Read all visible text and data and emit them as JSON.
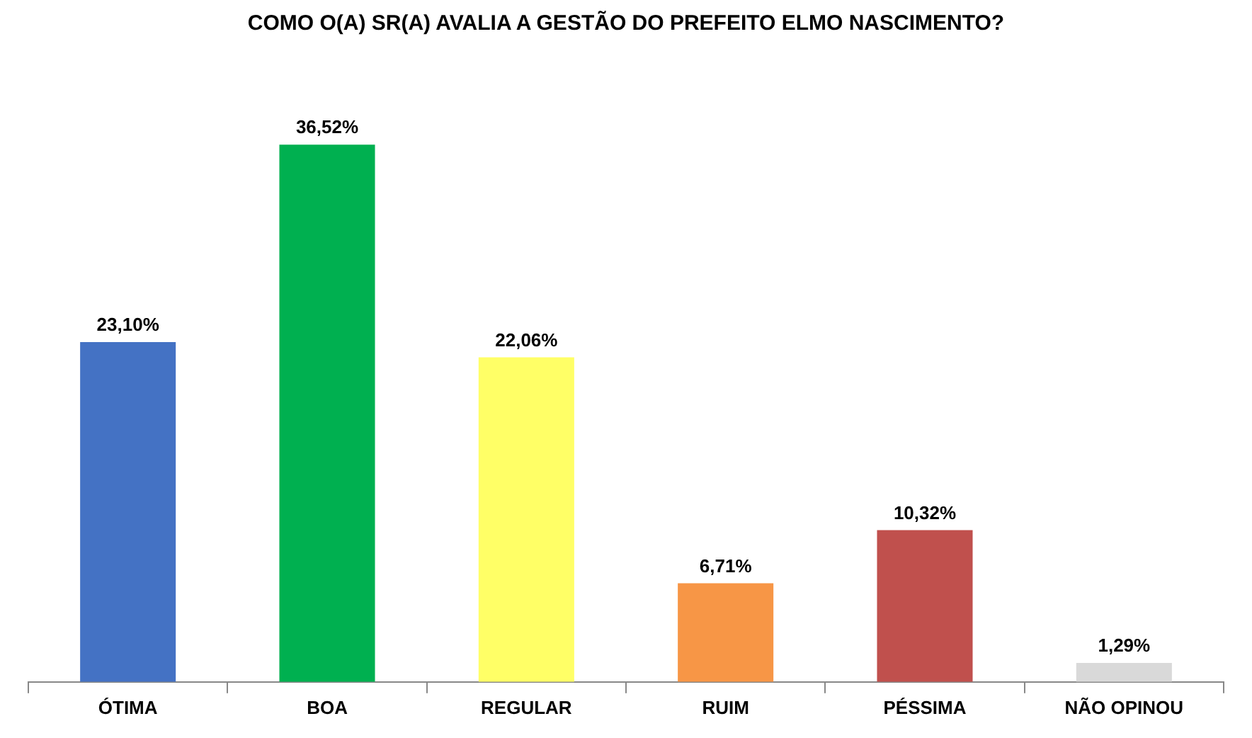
{
  "chart_data": {
    "type": "bar",
    "title": "COMO O(A) SR(A) AVALIA A GESTÃO DO PREFEITO ELMO NASCIMENTO?",
    "categories": [
      "ÓTIMA",
      "BOA",
      "REGULAR",
      "RUIM",
      "PÉSSIMA",
      "NÃO OPINOU"
    ],
    "values": [
      23.1,
      36.52,
      22.06,
      6.71,
      10.32,
      1.29
    ],
    "colors": [
      "#4472c4",
      "#00b050",
      "#ffff66",
      "#f79646",
      "#c0504d",
      "#d9d9d9"
    ],
    "value_labels": [
      "23,10%",
      "36,52%",
      "22,06%",
      "6,71%",
      "10,32%",
      "1,29%"
    ],
    "tick_labels": "x",
    "grid": false,
    "legend": false
  }
}
